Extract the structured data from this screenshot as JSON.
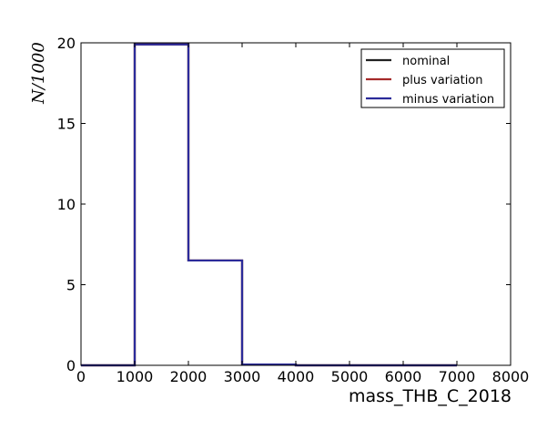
{
  "chart_data": {
    "type": "line",
    "xlabel": "mass_THB_C_2018",
    "ylabel": "N/1000",
    "xlim": [
      0,
      8000
    ],
    "ylim": [
      0,
      20
    ],
    "x_ticks": [
      "0",
      "1000",
      "2000",
      "3000",
      "4000",
      "5000",
      "6000",
      "7000",
      "8000"
    ],
    "y_ticks": [
      "0",
      "5",
      "10",
      "15",
      "20"
    ],
    "grid": false,
    "legend_position": "top-right",
    "bin_edges": [
      0,
      1000,
      2000,
      3000,
      4000,
      5000,
      6000,
      7000
    ],
    "series": [
      {
        "name": "nominal",
        "color": "#222222",
        "values": [
          0,
          19.9,
          6.5,
          0.05,
          0,
          0,
          0
        ]
      },
      {
        "name": "plus variation",
        "color": "#a52a2a",
        "values": [
          0,
          19.9,
          6.5,
          0.05,
          0,
          0,
          0
        ]
      },
      {
        "name": "minus variation",
        "color": "#2b2b9a",
        "values": [
          0,
          19.9,
          6.5,
          0.05,
          0,
          0,
          0
        ]
      }
    ]
  }
}
